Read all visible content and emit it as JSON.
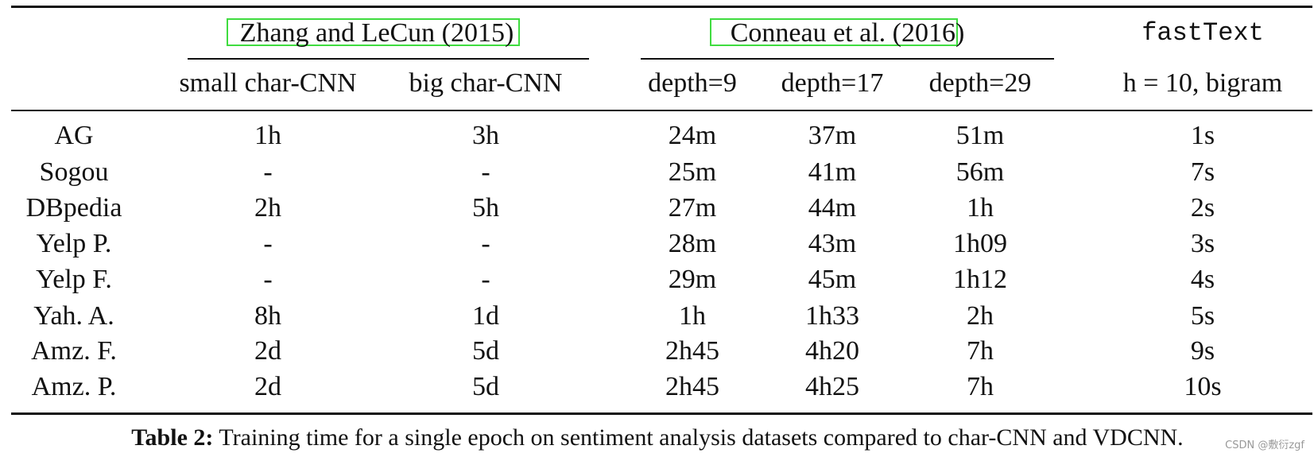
{
  "table": {
    "group_headers": [
      "Zhang and LeCun (2015)",
      "Conneau et al. (2016)",
      "fastText"
    ],
    "column_headers": [
      "small char-CNN",
      "big char-CNN",
      "depth=9",
      "depth=17",
      "depth=29",
      "h = 10, bigram"
    ],
    "rows": [
      [
        "AG",
        "1h",
        "3h",
        "24m",
        "37m",
        "51m",
        "1s"
      ],
      [
        "Sogou",
        "-",
        "-",
        "25m",
        "41m",
        "56m",
        "7s"
      ],
      [
        "DBpedia",
        "2h",
        "5h",
        "27m",
        "44m",
        "1h",
        "2s"
      ],
      [
        "Yelp P.",
        "-",
        "-",
        "28m",
        "43m",
        "1h09",
        "3s"
      ],
      [
        "Yelp F.",
        "-",
        "-",
        "29m",
        "45m",
        "1h12",
        "4s"
      ],
      [
        "Yah. A.",
        "8h",
        "1d",
        "1h",
        "1h33",
        "2h",
        "5s"
      ],
      [
        "Amz. F.",
        "2d",
        "5d",
        "2h45",
        "4h20",
        "7h",
        "9s"
      ],
      [
        "Amz. P.",
        "2d",
        "5d",
        "2h45",
        "4h25",
        "7h",
        "10s"
      ]
    ]
  },
  "caption": {
    "label": "Table 2:",
    "text": "Training time for a single epoch on sentiment analysis datasets compared to char-CNN and VDCNN."
  },
  "watermark": "CSDN @敷衍zgf"
}
